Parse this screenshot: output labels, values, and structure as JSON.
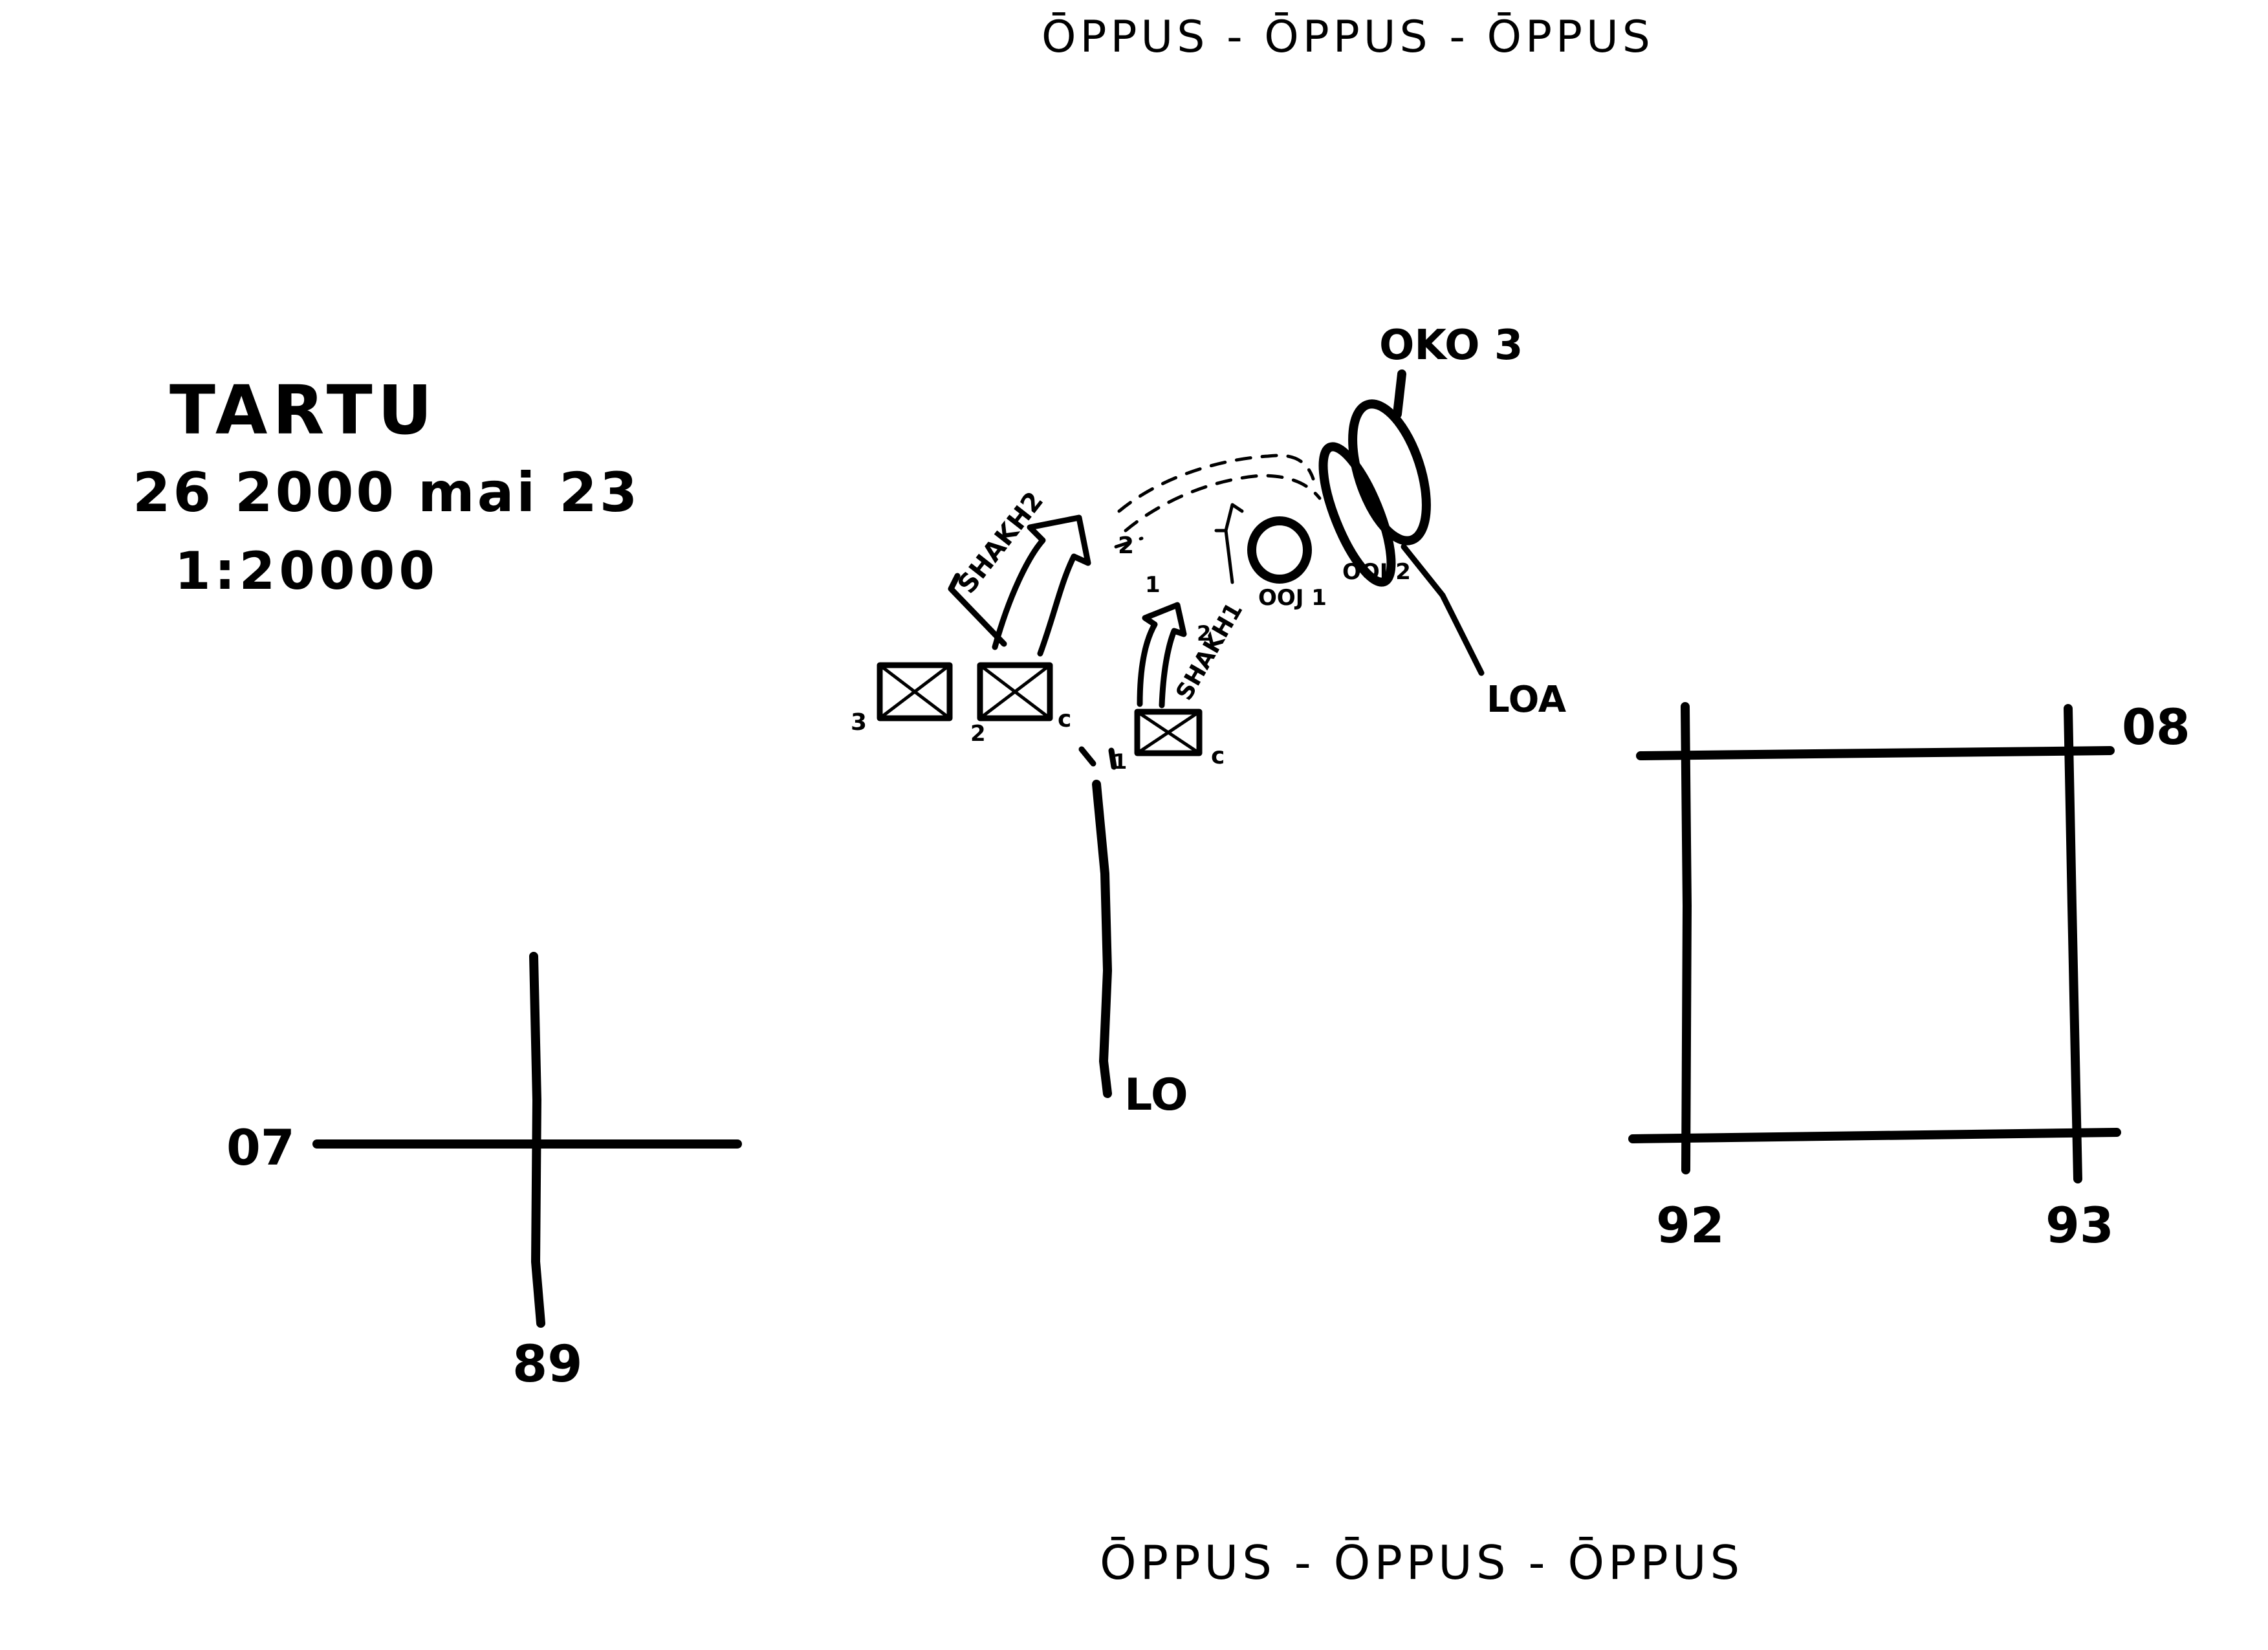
{
  "header": {
    "text": "ŌPPUS - ŌPPUS  - ŌPPUS"
  },
  "footer": {
    "text": "ŌPPUS -  ŌPPUS - ŌPPUS"
  },
  "info": {
    "place": "TARTU",
    "date": "26 2000 mai 23",
    "scale": "1:20000"
  },
  "left_cross": {
    "horizontal_label": "07",
    "vertical_label": "89"
  },
  "right_grid": {
    "top_right_label": "08",
    "bottom_left_label": "92",
    "bottom_right_label": "93"
  },
  "diagram": {
    "route_top": "OKO 3",
    "route_bottom": "LO",
    "route_right": "LOA",
    "unit_labels": {
      "u3": "3",
      "u2": "2",
      "uc1": "c",
      "uc2": "c",
      "u1": "1"
    },
    "arrow_labels": {
      "large": "SHAKH2",
      "small": "SHAKH1"
    },
    "objective_labels": {
      "o1": "OOJ 1",
      "o2": "OOJ 2"
    },
    "small_marks": {
      "m2": "2",
      "m1": "1",
      "m_arrow": "2"
    }
  }
}
